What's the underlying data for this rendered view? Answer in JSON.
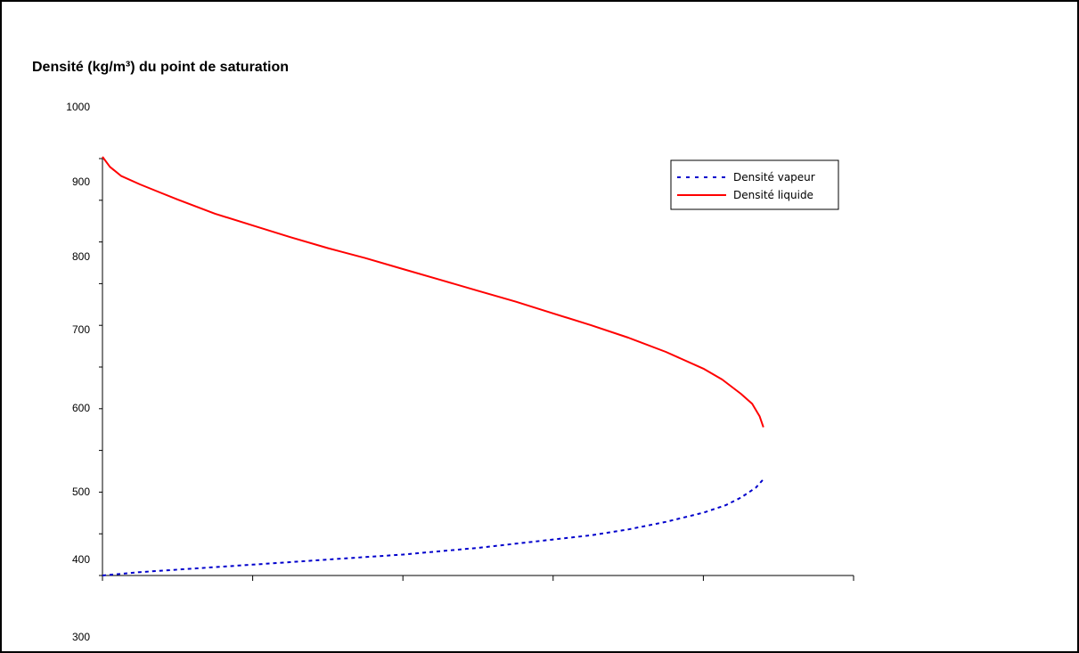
{
  "chart_data": {
    "type": "line",
    "title": "Densité (kg/m³) du point de saturation",
    "y_tick_labels": [
      "1000",
      "900",
      "800",
      "700",
      "600",
      "500",
      "400",
      "300"
    ],
    "xlim": [
      0,
      10
    ],
    "series": [
      {
        "name": "Densité vapeur",
        "color": "#0000cc",
        "style": "dotted",
        "x": [
          0,
          0.5,
          1,
          1.5,
          2,
          2.5,
          3,
          3.5,
          4,
          4.5,
          5,
          5.5,
          6,
          6.5,
          7,
          7.5,
          8,
          8.3,
          8.5,
          8.7,
          8.8
        ],
        "y": [
          400,
          404,
          407,
          410,
          413,
          416,
          419,
          422,
          425,
          429,
          433,
          438,
          443,
          448,
          455,
          464,
          475,
          484,
          493,
          505,
          515
        ]
      },
      {
        "name": "Densité liquide",
        "color": "#ff0000",
        "style": "solid",
        "x": [
          0,
          0.1,
          0.25,
          0.5,
          0.75,
          1,
          1.5,
          2,
          2.5,
          3,
          3.5,
          4,
          4.5,
          5,
          5.5,
          6,
          6.5,
          7,
          7.5,
          8,
          8.25,
          8.5,
          8.65,
          8.75,
          8.8
        ],
        "y": [
          900,
          888,
          877,
          867,
          858,
          849,
          832,
          818,
          804,
          791,
          779,
          766,
          753,
          740,
          727,
          713,
          699,
          684,
          667,
          647,
          634,
          617,
          605,
          590,
          577
        ]
      }
    ],
    "legend_position": "top-right",
    "grid": false
  }
}
